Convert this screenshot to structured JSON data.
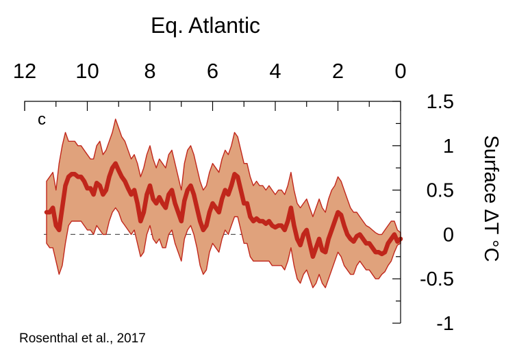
{
  "chart_data": {
    "type": "area",
    "title": "Eq. Atlantic",
    "panel_label": "c",
    "xlabel": "",
    "ylabel": "Surface ΔT °C",
    "x_axis_position": "top",
    "y_axis_position": "right",
    "xlim": [
      12,
      0
    ],
    "ylim": [
      -1,
      1.5
    ],
    "x_ticks": [
      "12",
      "10",
      "8",
      "6",
      "4",
      "2",
      "0"
    ],
    "y_ticks": [
      "1.5",
      "1",
      "0.5",
      "0",
      "-0.5",
      "-1"
    ],
    "reference_line": 0,
    "grid": false,
    "source": "Rosenthal et al., 2017",
    "colors": {
      "band": "#e0a27c",
      "band_edge": "#c0261b",
      "line": "#c0261b",
      "zero_line": "#555555"
    },
    "series": [
      {
        "x": [
          11.3,
          11.2,
          11.1,
          11.0,
          10.9,
          10.8,
          10.7,
          10.6,
          10.5,
          10.4,
          10.3,
          10.2,
          10.1,
          10.0,
          9.9,
          9.8,
          9.7,
          9.6,
          9.5,
          9.4,
          9.3,
          9.2,
          9.1,
          9.0,
          8.9,
          8.8,
          8.7,
          8.6,
          8.5,
          8.4,
          8.3,
          8.2,
          8.1,
          8.0,
          7.9,
          7.8,
          7.7,
          7.6,
          7.5,
          7.4,
          7.3,
          7.2,
          7.1,
          7.0,
          6.9,
          6.8,
          6.7,
          6.6,
          6.5,
          6.4,
          6.3,
          6.2,
          6.1,
          6.0,
          5.9,
          5.8,
          5.7,
          5.6,
          5.5,
          5.4,
          5.3,
          5.2,
          5.1,
          5.0,
          4.9,
          4.8,
          4.7,
          4.6,
          4.5,
          4.4,
          4.3,
          4.2,
          4.1,
          4.0,
          3.9,
          3.8,
          3.7,
          3.6,
          3.5,
          3.4,
          3.3,
          3.2,
          3.1,
          3.0,
          2.9,
          2.8,
          2.7,
          2.6,
          2.5,
          2.4,
          2.3,
          2.2,
          2.1,
          2.0,
          1.9,
          1.8,
          1.7,
          1.6,
          1.5,
          1.4,
          1.3,
          1.2,
          1.1,
          1.0,
          0.9,
          0.8,
          0.7,
          0.6,
          0.5,
          0.4,
          0.3,
          0.2,
          0.1,
          0.0
        ],
        "mean": [
          0.25,
          0.25,
          0.3,
          0.1,
          0.05,
          0.3,
          0.55,
          0.65,
          0.68,
          0.68,
          0.65,
          0.65,
          0.6,
          0.52,
          0.52,
          0.45,
          0.58,
          0.55,
          0.45,
          0.5,
          0.65,
          0.75,
          0.8,
          0.72,
          0.65,
          0.6,
          0.52,
          0.45,
          0.5,
          0.35,
          0.15,
          0.25,
          0.45,
          0.55,
          0.4,
          0.35,
          0.42,
          0.35,
          0.3,
          0.45,
          0.5,
          0.35,
          0.25,
          0.15,
          0.38,
          0.5,
          0.55,
          0.45,
          0.3,
          0.15,
          0.05,
          0.1,
          0.25,
          0.35,
          0.3,
          0.25,
          0.4,
          0.5,
          0.45,
          0.55,
          0.68,
          0.65,
          0.5,
          0.35,
          0.35,
          0.2,
          0.15,
          0.18,
          0.15,
          0.15,
          0.12,
          0.15,
          0.1,
          0.08,
          0.1,
          0.1,
          0.05,
          0.15,
          0.3,
          0.1,
          -0.05,
          -0.12,
          0.0,
          0.05,
          -0.1,
          -0.25,
          -0.15,
          -0.05,
          -0.18,
          -0.2,
          -0.05,
          0.05,
          0.15,
          0.25,
          0.22,
          0.1,
          0.0,
          -0.05,
          -0.08,
          -0.02,
          0.0,
          -0.05,
          -0.1,
          -0.1,
          -0.15,
          -0.2,
          -0.2,
          -0.22,
          -0.2,
          -0.1,
          -0.05,
          0.0,
          -0.08,
          -0.05
        ],
        "upper": [
          0.6,
          0.65,
          0.7,
          0.5,
          0.8,
          1.0,
          1.15,
          1.05,
          1.05,
          1.05,
          1.0,
          1.0,
          0.95,
          0.9,
          0.85,
          0.85,
          1.0,
          1.05,
          0.9,
          0.95,
          1.05,
          1.15,
          1.3,
          1.2,
          1.1,
          1.05,
          0.95,
          0.85,
          0.9,
          0.8,
          0.65,
          0.75,
          0.9,
          1.0,
          0.85,
          0.75,
          0.85,
          0.8,
          0.75,
          0.9,
          0.95,
          0.8,
          0.65,
          0.5,
          0.8,
          0.95,
          1.0,
          0.9,
          0.75,
          0.6,
          0.5,
          0.55,
          0.7,
          0.8,
          0.75,
          0.7,
          0.85,
          0.95,
          0.9,
          1.0,
          1.15,
          1.1,
          0.95,
          0.8,
          0.8,
          0.65,
          0.55,
          0.6,
          0.55,
          0.55,
          0.5,
          0.55,
          0.5,
          0.45,
          0.5,
          0.5,
          0.45,
          0.55,
          0.7,
          0.5,
          0.35,
          0.3,
          0.35,
          0.4,
          0.3,
          0.2,
          0.3,
          0.4,
          0.3,
          0.25,
          0.4,
          0.5,
          0.55,
          0.65,
          0.6,
          0.5,
          0.4,
          0.3,
          0.25,
          0.25,
          0.2,
          0.15,
          0.1,
          0.08,
          0.05,
          0.02,
          0.0,
          0.0,
          0.05,
          0.1,
          0.15,
          0.15,
          0.05,
          0.02
        ],
        "lower": [
          -0.1,
          -0.15,
          -0.15,
          -0.3,
          -0.45,
          -0.35,
          -0.1,
          0.1,
          0.15,
          0.15,
          0.15,
          0.15,
          0.1,
          0.05,
          0.05,
          0.0,
          0.1,
          0.05,
          0.0,
          0.0,
          0.15,
          0.25,
          0.3,
          0.25,
          0.15,
          0.1,
          0.05,
          0.0,
          0.05,
          -0.1,
          -0.25,
          -0.2,
          0.0,
          0.1,
          -0.05,
          -0.1,
          -0.05,
          -0.15,
          -0.15,
          0.0,
          0.05,
          -0.1,
          -0.2,
          -0.3,
          -0.05,
          0.05,
          0.1,
          0.0,
          -0.15,
          -0.35,
          -0.45,
          -0.4,
          -0.2,
          -0.1,
          -0.15,
          -0.2,
          -0.05,
          0.05,
          0.0,
          0.1,
          0.2,
          0.2,
          0.05,
          -0.1,
          -0.1,
          -0.25,
          -0.3,
          -0.3,
          -0.3,
          -0.3,
          -0.3,
          -0.3,
          -0.35,
          -0.35,
          -0.35,
          -0.35,
          -0.4,
          -0.3,
          -0.15,
          -0.35,
          -0.5,
          -0.55,
          -0.45,
          -0.4,
          -0.5,
          -0.6,
          -0.55,
          -0.45,
          -0.55,
          -0.6,
          -0.5,
          -0.4,
          -0.3,
          -0.2,
          -0.25,
          -0.35,
          -0.4,
          -0.45,
          -0.45,
          -0.35,
          -0.3,
          -0.35,
          -0.4,
          -0.4,
          -0.45,
          -0.5,
          -0.5,
          -0.45,
          -0.42,
          -0.35,
          -0.3,
          -0.2,
          -0.12,
          -0.1
        ]
      }
    ]
  }
}
